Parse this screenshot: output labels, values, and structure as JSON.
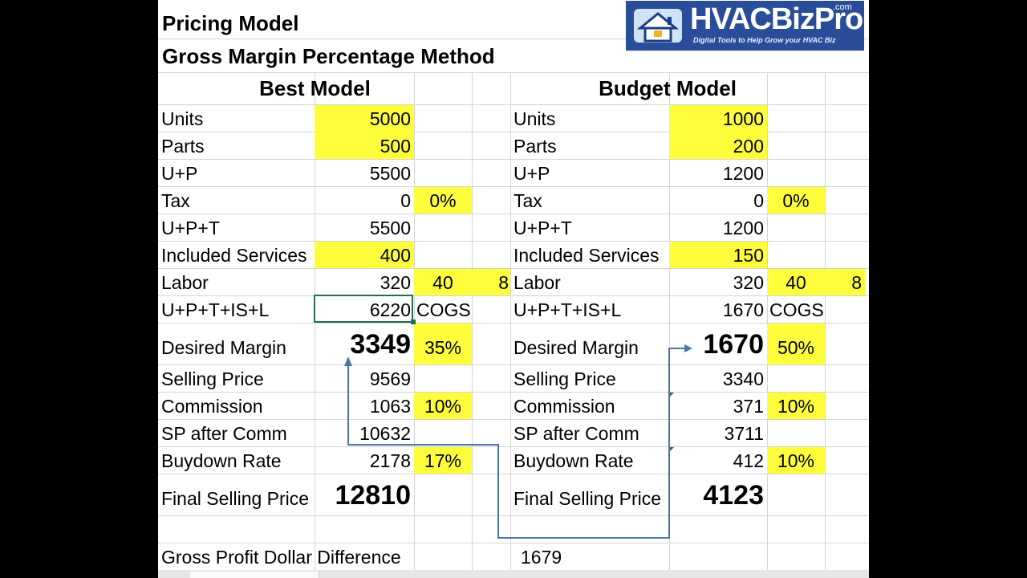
{
  "title": "Pricing Model",
  "subtitle": "Gross Margin Percentage Method",
  "logo": {
    "brand": "HVACBizPro",
    "com": ".com",
    "tagline": "Digital Tools to Help Grow your HVAC Biz"
  },
  "colors": {
    "highlight": "#fefe3c",
    "selection": "#1e7145",
    "arrow": "#4f74ad",
    "logo_bg": "#2a4d9a"
  },
  "best": {
    "header": "Best Model",
    "rows": [
      {
        "label": "Units",
        "value": "5000"
      },
      {
        "label": "Parts",
        "value": "500"
      },
      {
        "label": "U+P",
        "value": "5500"
      },
      {
        "label": "Tax",
        "value": "0",
        "extra": "0%"
      },
      {
        "label": "U+P+T",
        "value": "5500"
      },
      {
        "label": "Included Services",
        "value": "400"
      },
      {
        "label": "Labor",
        "value": "320",
        "extra": "40",
        "extra2": "8"
      },
      {
        "label": "U+P+T+IS+L",
        "value": "6220",
        "extra": "COGS"
      },
      {
        "label": "Desired Margin",
        "value": "3349",
        "extra": "35%"
      },
      {
        "label": "Selling Price",
        "value": "9569"
      },
      {
        "label": "Commission",
        "value": "1063",
        "extra": "10%"
      },
      {
        "label": "SP after Comm",
        "value": "10632"
      },
      {
        "label": "Buydown Rate",
        "value": "2178",
        "extra": "17%"
      },
      {
        "label": "Final Selling Price",
        "value": "12810"
      }
    ]
  },
  "budget": {
    "header": "Budget Model",
    "rows": [
      {
        "label": "Units",
        "value": "1000"
      },
      {
        "label": "Parts",
        "value": "200"
      },
      {
        "label": "U+P",
        "value": "1200"
      },
      {
        "label": "Tax",
        "value": "0",
        "extra": "0%"
      },
      {
        "label": "U+P+T",
        "value": "1200"
      },
      {
        "label": "Included Services",
        "value": "150"
      },
      {
        "label": "Labor",
        "value": "320",
        "extra": "40",
        "extra2": "8"
      },
      {
        "label": "U+P+T+IS+L",
        "value": "1670",
        "extra": "COGS"
      },
      {
        "label": "Desired Margin",
        "value": "1670",
        "extra": "50%"
      },
      {
        "label": "Selling Price",
        "value": "3340"
      },
      {
        "label": "Commission",
        "value": "371",
        "extra": "10%"
      },
      {
        "label": "SP after Comm",
        "value": "3711"
      },
      {
        "label": "Buydown Rate",
        "value": "412",
        "extra": "10%"
      },
      {
        "label": "Final Selling Price",
        "value": "4123"
      }
    ]
  },
  "gross_profit": {
    "label": "Gross Profit Dollar Difference",
    "value": "1679"
  }
}
